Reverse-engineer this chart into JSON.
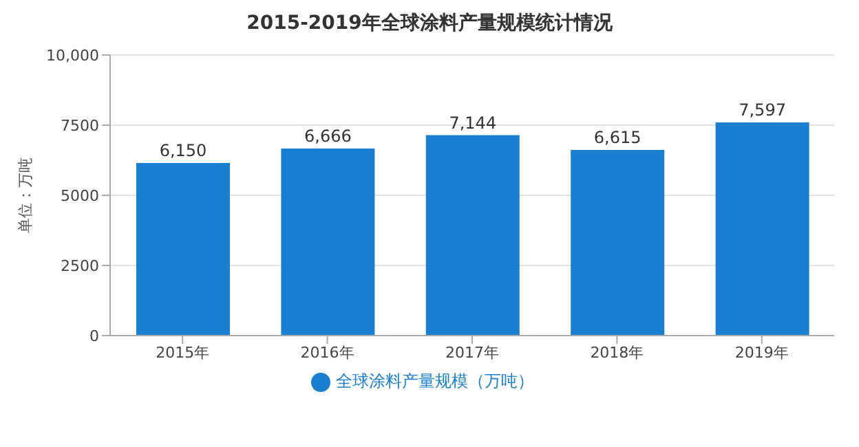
{
  "chart_data": {
    "type": "bar",
    "title": "2015-2019年全球涂料产量规模统计情况",
    "ylabel": "单位：万吨",
    "categories": [
      "2015年",
      "2016年",
      "2017年",
      "2018年",
      "2019年"
    ],
    "series": [
      {
        "name": "全球涂料产量规模（万吨）",
        "color": "#1a7fd0",
        "values": [
          6150,
          6666,
          7144,
          6615,
          7597
        ],
        "value_labels": [
          "6,150",
          "6,666",
          "7,144",
          "6,615",
          "7,597"
        ]
      }
    ],
    "ylim": [
      0,
      10000
    ],
    "yticks": [
      0,
      2500,
      5000,
      7500,
      {
        "value": 10000,
        "label": "10,000"
      }
    ],
    "grid": "y",
    "legend": "bottom"
  }
}
